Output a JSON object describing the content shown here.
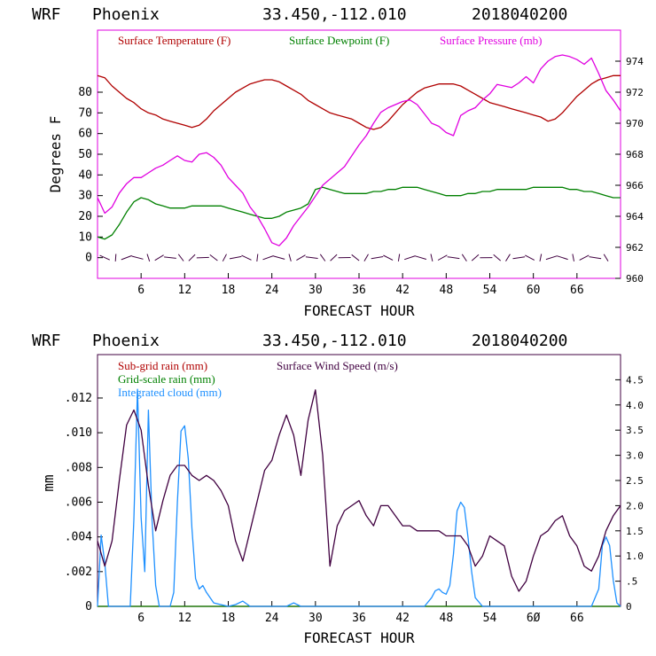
{
  "chart_data": [
    {
      "type": "line",
      "header": {
        "model": "WRF",
        "location": "Phoenix",
        "coords": "33.450,-112.010",
        "init": "2018040200"
      },
      "xlabel": "FORECAST HOUR",
      "ylabel": "Degrees F",
      "xlim": [
        0,
        72
      ],
      "ylim": [
        -10,
        110
      ],
      "y2lim": [
        960,
        976
      ],
      "xticks": [
        6,
        12,
        18,
        24,
        30,
        36,
        42,
        48,
        54,
        60,
        66
      ],
      "yticks": [
        0,
        10,
        20,
        30,
        40,
        50,
        60,
        70,
        80
      ],
      "y2ticks": [
        960,
        962,
        964,
        966,
        968,
        970,
        972,
        974
      ],
      "colors": {
        "temp": "#b00000",
        "dew": "#008000",
        "pres": "#e000e0",
        "wind": "#400040"
      },
      "series": [
        {
          "name": "Surface Temperature (F)",
          "axis": "left",
          "key": "temp",
          "x": [
            0,
            1,
            2,
            3,
            4,
            5,
            6,
            7,
            8,
            9,
            10,
            11,
            12,
            13,
            14,
            15,
            16,
            17,
            18,
            19,
            20,
            21,
            22,
            23,
            24,
            25,
            26,
            27,
            28,
            29,
            30,
            31,
            32,
            33,
            34,
            35,
            36,
            37,
            38,
            39,
            40,
            41,
            42,
            43,
            44,
            45,
            46,
            47,
            48,
            49,
            50,
            51,
            52,
            53,
            54,
            55,
            56,
            57,
            58,
            59,
            60,
            61,
            62,
            63,
            64,
            65,
            66,
            67,
            68,
            69,
            70,
            71,
            72
          ],
          "y": [
            88,
            87,
            83,
            80,
            77,
            75,
            72,
            70,
            69,
            67,
            66,
            65,
            64,
            63,
            64,
            67,
            71,
            74,
            77,
            80,
            82,
            84,
            85,
            86,
            86,
            85,
            83,
            81,
            79,
            76,
            74,
            72,
            70,
            69,
            68,
            67,
            65,
            63,
            62,
            63,
            66,
            70,
            74,
            77,
            80,
            82,
            83,
            84,
            84,
            84,
            83,
            81,
            79,
            77,
            75,
            74,
            73,
            72,
            71,
            70,
            69,
            68,
            66,
            67,
            70,
            74,
            78,
            81,
            84,
            86,
            87,
            88,
            88
          ]
        },
        {
          "name": "Surface Dewpoint (F)",
          "axis": "left",
          "key": "dew",
          "x": [
            0,
            1,
            2,
            3,
            4,
            5,
            6,
            7,
            8,
            9,
            10,
            11,
            12,
            13,
            14,
            15,
            16,
            17,
            18,
            19,
            20,
            21,
            22,
            23,
            24,
            25,
            26,
            27,
            28,
            29,
            30,
            31,
            32,
            33,
            34,
            35,
            36,
            37,
            38,
            39,
            40,
            41,
            42,
            43,
            44,
            45,
            46,
            47,
            48,
            49,
            50,
            51,
            52,
            53,
            54,
            55,
            56,
            57,
            58,
            59,
            60,
            61,
            62,
            63,
            64,
            65,
            66,
            67,
            68,
            69,
            70,
            71,
            72
          ],
          "y": [
            10,
            9,
            11,
            16,
            22,
            27,
            29,
            28,
            26,
            25,
            24,
            24,
            24,
            25,
            25,
            25,
            25,
            25,
            24,
            23,
            22,
            21,
            20,
            19,
            19,
            20,
            22,
            23,
            24,
            26,
            33,
            34,
            33,
            32,
            31,
            31,
            31,
            31,
            32,
            32,
            33,
            33,
            34,
            34,
            34,
            33,
            32,
            31,
            30,
            30,
            30,
            31,
            31,
            32,
            32,
            33,
            33,
            33,
            33,
            33,
            34,
            34,
            34,
            34,
            34,
            33,
            33,
            32,
            32,
            31,
            30,
            29,
            29
          ]
        },
        {
          "name": "Surface Pressure (mb)",
          "axis": "right",
          "key": "pres",
          "x": [
            0,
            1,
            2,
            3,
            4,
            5,
            6,
            7,
            8,
            9,
            10,
            11,
            12,
            13,
            14,
            15,
            16,
            17,
            18,
            19,
            20,
            21,
            22,
            23,
            24,
            25,
            26,
            27,
            28,
            29,
            30,
            31,
            32,
            33,
            34,
            35,
            36,
            37,
            38,
            39,
            40,
            41,
            42,
            43,
            44,
            45,
            46,
            47,
            48,
            49,
            50,
            51,
            52,
            53,
            54,
            55,
            56,
            57,
            58,
            59,
            60,
            61,
            62,
            63,
            64,
            65,
            66,
            67,
            68,
            69,
            70,
            71,
            72
          ],
          "y": [
            965.2,
            964.2,
            964.6,
            965.5,
            966.1,
            966.5,
            966.5,
            966.8,
            967.1,
            967.3,
            967.6,
            967.9,
            967.6,
            967.5,
            968,
            968.1,
            967.8,
            967.3,
            966.5,
            966,
            965.5,
            964.6,
            964,
            963.2,
            962.3,
            962.1,
            962.6,
            963.4,
            964,
            964.6,
            965.3,
            966,
            966.4,
            966.8,
            967.2,
            967.9,
            968.6,
            969.2,
            970,
            970.7,
            971,
            971.2,
            971.4,
            971.5,
            971.2,
            970.6,
            970,
            969.8,
            969.4,
            969.2,
            970.5,
            970.8,
            971,
            971.5,
            971.9,
            972.5,
            972.4,
            972.3,
            972.6,
            973,
            972.6,
            973.5,
            974,
            974.3,
            974.4,
            974.3,
            974.1,
            973.8,
            974.2,
            973.2,
            972.1,
            971.5,
            970.8
          ]
        }
      ],
      "wind_barbs_present": true
    },
    {
      "type": "line",
      "header": {
        "model": "WRF",
        "location": "Phoenix",
        "coords": "33.450,-112.010",
        "init": "2018040200"
      },
      "xlabel": "FORECAST HOUR",
      "ylabel": "mm",
      "xlim": [
        0,
        72
      ],
      "ylim": [
        0,
        0.0145
      ],
      "y2lim": [
        0,
        5
      ],
      "xticks": [
        6,
        12,
        18,
        24,
        30,
        36,
        42,
        48,
        54,
        60,
        66
      ],
      "xticklabels": [
        "6",
        "12",
        "18",
        "24",
        "30",
        "36",
        "42",
        "48",
        "54",
        "6Ø",
        "66"
      ],
      "yticks": [
        0,
        0.002,
        0.004,
        0.006,
        0.008,
        0.01,
        0.012
      ],
      "yticklabels": [
        "0",
        ".002",
        ".004",
        ".006",
        ".008",
        ".010",
        ".012"
      ],
      "y2ticks": [
        0,
        0.5,
        1,
        1.5,
        2,
        2.5,
        3,
        3.5,
        4,
        4.5
      ],
      "y2ticklabels": [
        "0",
        ".5",
        "1.0",
        "1.5",
        "2.0",
        "2.5",
        "3.0",
        "3.5",
        "4.0",
        "4.5"
      ],
      "colors": {
        "subgrid": "#b00000",
        "grid": "#008000",
        "cloud": "#1e90ff",
        "wind": "#400040"
      },
      "series": [
        {
          "name": "Sub-grid rain (mm)",
          "axis": "left",
          "key": "subgrid",
          "x": [
            0,
            72
          ],
          "y": [
            0,
            0
          ]
        },
        {
          "name": "Grid-scale rain (mm)",
          "axis": "left",
          "key": "grid",
          "x": [
            0,
            72
          ],
          "y": [
            0,
            0
          ]
        },
        {
          "name": "Integrated cloud (mm)",
          "axis": "left",
          "key": "cloud",
          "x": [
            0,
            0.5,
            1,
            1.5,
            2,
            2.5,
            3,
            3.5,
            4,
            4.5,
            5,
            5.5,
            6,
            6.5,
            7,
            7.5,
            8,
            8.5,
            9,
            9.5,
            10,
            10.5,
            11,
            11.5,
            12,
            12.5,
            13,
            13.5,
            14,
            14.5,
            15,
            16,
            18,
            19,
            20,
            21,
            22,
            24,
            26,
            27,
            28,
            30,
            32,
            40,
            44,
            45,
            46,
            46.5,
            47,
            47.5,
            48,
            48.5,
            49,
            49.5,
            50,
            50.5,
            51,
            51.5,
            52,
            53,
            56,
            60,
            64,
            68,
            69,
            69.5,
            70,
            70.5,
            71,
            71.5,
            72
          ],
          "y": [
            0,
            0.0041,
            0.0025,
            0,
            0,
            0,
            0,
            0,
            0,
            0,
            0.005,
            0.0125,
            0.0051,
            0.002,
            0.0113,
            0.005,
            0.0012,
            0,
            0,
            0,
            0,
            0.0008,
            0.006,
            0.0101,
            0.0104,
            0.0085,
            0.0045,
            0.0016,
            0.001,
            0.0012,
            0.0008,
            0.0002,
            0,
            0.0001,
            0.0003,
            0,
            0,
            0,
            0,
            0.0002,
            0,
            0,
            0,
            0,
            0,
            0,
            0.0005,
            0.0009,
            0.001,
            0.0008,
            0.0007,
            0.0012,
            0.003,
            0.0055,
            0.006,
            0.0057,
            0.004,
            0.002,
            0.0005,
            0,
            0,
            0,
            0,
            0,
            0.001,
            0.0035,
            0.004,
            0.0035,
            0.0015,
            0.0002,
            0
          ]
        },
        {
          "name": "Surface Wind Speed (m/s)",
          "axis": "right",
          "key": "wind",
          "x": [
            0,
            1,
            2,
            3,
            4,
            5,
            6,
            7,
            8,
            9,
            10,
            11,
            12,
            13,
            14,
            15,
            16,
            17,
            18,
            19,
            20,
            21,
            22,
            23,
            24,
            25,
            26,
            27,
            28,
            29,
            30,
            31,
            32,
            33,
            34,
            35,
            36,
            37,
            38,
            39,
            40,
            41,
            42,
            43,
            44,
            45,
            46,
            47,
            48,
            49,
            50,
            51,
            52,
            53,
            54,
            55,
            56,
            57,
            58,
            59,
            60,
            61,
            62,
            63,
            64,
            65,
            66,
            67,
            68,
            69,
            70,
            71,
            72
          ],
          "y": [
            1.3,
            0.8,
            1.3,
            2.5,
            3.6,
            3.9,
            3.5,
            2.4,
            1.5,
            2.1,
            2.6,
            2.8,
            2.8,
            2.6,
            2.5,
            2.6,
            2.5,
            2.3,
            2,
            1.3,
            0.9,
            1.5,
            2.1,
            2.7,
            2.9,
            3.4,
            3.8,
            3.4,
            2.6,
            3.7,
            4.3,
            3,
            0.8,
            1.6,
            1.9,
            2,
            2.1,
            1.8,
            1.6,
            2,
            2,
            1.8,
            1.6,
            1.6,
            1.5,
            1.5,
            1.5,
            1.5,
            1.4,
            1.4,
            1.4,
            1.2,
            0.8,
            1,
            1.4,
            1.3,
            1.2,
            0.6,
            0.3,
            0.5,
            1.0,
            1.4,
            1.5,
            1.7,
            1.8,
            1.4,
            1.2,
            0.8,
            0.7,
            1,
            1.5,
            1.8,
            2
          ]
        }
      ]
    }
  ]
}
